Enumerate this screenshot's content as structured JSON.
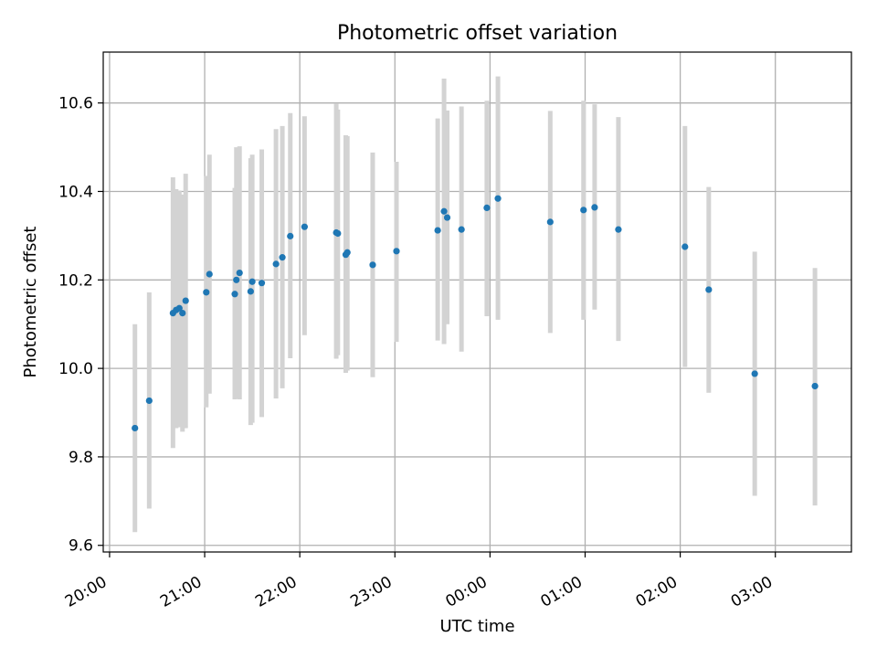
{
  "chart_data": {
    "type": "scatter",
    "title": "Photometric offset variation",
    "xlabel": "UTC time",
    "ylabel": "Photometric offset",
    "x_tick_labels": [
      "20:00",
      "21:00",
      "22:00",
      "23:00",
      "00:00",
      "01:00",
      "02:00",
      "03:00"
    ],
    "y_tick_labels": [
      "9.6",
      "9.8",
      "10.0",
      "10.2",
      "10.4",
      "10.6"
    ],
    "y_ticks": [
      9.6,
      9.8,
      10.0,
      10.2,
      10.4,
      10.6
    ],
    "ylim": [
      9.585,
      10.715
    ],
    "xlim": [
      "19:56",
      "27:48"
    ],
    "grid": true,
    "series": [
      {
        "marker_color": "#1f77b4",
        "errorbar_color": "#d3d3d3",
        "points": [
          {
            "time": "20:16",
            "value": 9.865,
            "lower": 9.63,
            "upper": 10.1
          },
          {
            "time": "20:25",
            "value": 9.927,
            "lower": 9.683,
            "upper": 10.172
          },
          {
            "time": "20:40",
            "value": 10.125,
            "lower": 9.82,
            "upper": 10.432
          },
          {
            "time": "20:42",
            "value": 10.132,
            "lower": 9.865,
            "upper": 10.405
          },
          {
            "time": "20:44",
            "value": 10.136,
            "lower": 9.867,
            "upper": 10.402
          },
          {
            "time": "20:46",
            "value": 10.125,
            "lower": 9.857,
            "upper": 10.393
          },
          {
            "time": "20:48",
            "value": 10.153,
            "lower": 9.865,
            "upper": 10.44
          },
          {
            "time": "21:01",
            "value": 10.172,
            "lower": 9.912,
            "upper": 10.435
          },
          {
            "time": "21:03",
            "value": 10.213,
            "lower": 9.943,
            "upper": 10.483
          },
          {
            "time": "21:19",
            "value": 10.168,
            "lower": 9.93,
            "upper": 10.408
          },
          {
            "time": "21:20",
            "value": 10.2,
            "lower": 9.932,
            "upper": 10.5
          },
          {
            "time": "21:22",
            "value": 10.216,
            "lower": 9.93,
            "upper": 10.502
          },
          {
            "time": "21:29",
            "value": 10.174,
            "lower": 9.872,
            "upper": 10.475
          },
          {
            "time": "21:30",
            "value": 10.196,
            "lower": 9.877,
            "upper": 10.483
          },
          {
            "time": "21:36",
            "value": 10.193,
            "lower": 9.89,
            "upper": 10.495
          },
          {
            "time": "21:45",
            "value": 10.236,
            "lower": 9.932,
            "upper": 10.541
          },
          {
            "time": "21:49",
            "value": 10.251,
            "lower": 9.955,
            "upper": 10.548
          },
          {
            "time": "21:54",
            "value": 10.299,
            "lower": 10.023,
            "upper": 10.577
          },
          {
            "time": "22:03",
            "value": 10.32,
            "lower": 10.075,
            "upper": 10.57
          },
          {
            "time": "22:23",
            "value": 10.307,
            "lower": 10.022,
            "upper": 10.598
          },
          {
            "time": "22:24",
            "value": 10.305,
            "lower": 10.03,
            "upper": 10.585
          },
          {
            "time": "22:29",
            "value": 10.257,
            "lower": 9.99,
            "upper": 10.527
          },
          {
            "time": "22:30",
            "value": 10.262,
            "lower": 9.995,
            "upper": 10.525
          },
          {
            "time": "22:46",
            "value": 10.234,
            "lower": 9.98,
            "upper": 10.488
          },
          {
            "time": "23:01",
            "value": 10.265,
            "lower": 10.06,
            "upper": 10.467
          },
          {
            "time": "23:27",
            "value": 10.312,
            "lower": 10.063,
            "upper": 10.565
          },
          {
            "time": "23:31",
            "value": 10.355,
            "lower": 10.055,
            "upper": 10.655
          },
          {
            "time": "23:33",
            "value": 10.341,
            "lower": 10.1,
            "upper": 10.583
          },
          {
            "time": "23:42",
            "value": 10.314,
            "lower": 10.038,
            "upper": 10.592
          },
          {
            "time": "23:58",
            "value": 10.363,
            "lower": 10.118,
            "upper": 10.605
          },
          {
            "time": "24:05",
            "value": 10.384,
            "lower": 10.11,
            "upper": 10.66
          },
          {
            "time": "24:38",
            "value": 10.331,
            "lower": 10.08,
            "upper": 10.582
          },
          {
            "time": "24:59",
            "value": 10.358,
            "lower": 10.11,
            "upper": 10.605
          },
          {
            "time": "25:06",
            "value": 10.364,
            "lower": 10.133,
            "upper": 10.597
          },
          {
            "time": "25:21",
            "value": 10.314,
            "lower": 10.062,
            "upper": 10.568
          },
          {
            "time": "26:03",
            "value": 10.275,
            "lower": 10.003,
            "upper": 10.548
          },
          {
            "time": "26:18",
            "value": 10.178,
            "lower": 9.945,
            "upper": 10.41
          },
          {
            "time": "26:47",
            "value": 9.988,
            "lower": 9.712,
            "upper": 10.264
          },
          {
            "time": "27:25",
            "value": 9.96,
            "lower": 9.69,
            "upper": 10.227
          }
        ]
      }
    ]
  }
}
